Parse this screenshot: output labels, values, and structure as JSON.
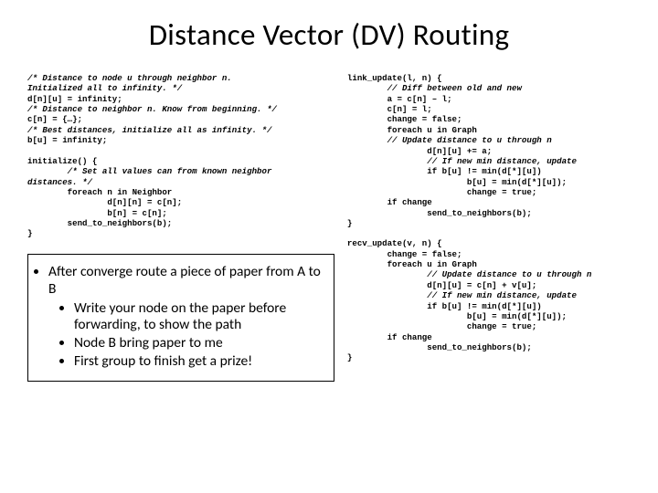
{
  "title": "Distance Vector (DV) Routing",
  "left": {
    "code_lines": [
      {
        "t": "/* Distance to node u through neighbor n.",
        "c": true
      },
      {
        "t": "Initialized all to infinity. */",
        "c": true
      },
      {
        "t": "d[n][u] = infinity;",
        "c": false
      },
      {
        "t": "/* Distance to neighbor n. Know from beginning. */",
        "c": true
      },
      {
        "t": "c[n] = {…};",
        "c": false
      },
      {
        "t": "/* Best distances, initialize all as infinity. */",
        "c": true
      },
      {
        "t": "b[u] = infinity;",
        "c": false
      },
      {
        "t": "",
        "c": false
      },
      {
        "t": "initialize() {",
        "c": false
      },
      {
        "t": "        /* Set all values can from known neighbor",
        "c": true
      },
      {
        "t": "distances. */",
        "c": true
      },
      {
        "t": "        foreach n in Neighbor",
        "c": false
      },
      {
        "t": "                d[n][n] = c[n];",
        "c": false
      },
      {
        "t": "                b[n] = c[n];",
        "c": false
      },
      {
        "t": "        send_to_neighbors(b);",
        "c": false
      },
      {
        "t": "}",
        "c": false
      }
    ]
  },
  "box": {
    "main": "After converge route a piece of paper from A to B",
    "items": [
      "Write your node on the paper before forwarding, to show the path",
      "Node B bring paper to me",
      "First group to finish get a prize!"
    ]
  },
  "right": {
    "block1": [
      {
        "t": "link_update(l, n) {",
        "c": false
      },
      {
        "t": "        // Diff between old and new",
        "c": true
      },
      {
        "t": "        a = c[n] – l;",
        "c": false
      },
      {
        "t": "        c[n] = l;",
        "c": false
      },
      {
        "t": "        change = false;",
        "c": false
      },
      {
        "t": "        foreach u in Graph",
        "c": false
      },
      {
        "t": "        // Update distance to u through n",
        "c": true
      },
      {
        "t": "                d[n][u] += a;",
        "c": false
      },
      {
        "t": "                // If new min distance, update",
        "c": true
      },
      {
        "t": "                if b[u] != min(d[*][u])",
        "c": false
      },
      {
        "t": "                        b[u] = min(d[*][u]);",
        "c": false
      },
      {
        "t": "                        change = true;",
        "c": false
      },
      {
        "t": "        if change",
        "c": false
      },
      {
        "t": "                send_to_neighbors(b);",
        "c": false
      },
      {
        "t": "}",
        "c": false
      }
    ],
    "block2": [
      {
        "t": "recv_update(v, n) {",
        "c": false
      },
      {
        "t": "        change = false;",
        "c": false
      },
      {
        "t": "        foreach u in Graph",
        "c": false
      },
      {
        "t": "                // Update distance to u through n",
        "c": true
      },
      {
        "t": "                d[n][u] = c[n] + v[u];",
        "c": false
      },
      {
        "t": "                // If new min distance, update",
        "c": true
      },
      {
        "t": "                if b[u] != min(d[*][u])",
        "c": false
      },
      {
        "t": "                        b[u] = min(d[*][u]);",
        "c": false
      },
      {
        "t": "                        change = true;",
        "c": false
      },
      {
        "t": "        if change",
        "c": false
      },
      {
        "t": "                send_to_neighbors(b);",
        "c": false
      },
      {
        "t": "}",
        "c": false
      }
    ]
  },
  "colors": {
    "background": "#ffffff",
    "text": "#000000",
    "border": "#000000"
  },
  "typography": {
    "title_fontsize": 33,
    "code_fontsize": 9.1,
    "body_fontsize": 15.5,
    "title_font": "Calibri",
    "code_font": "Courier New"
  }
}
